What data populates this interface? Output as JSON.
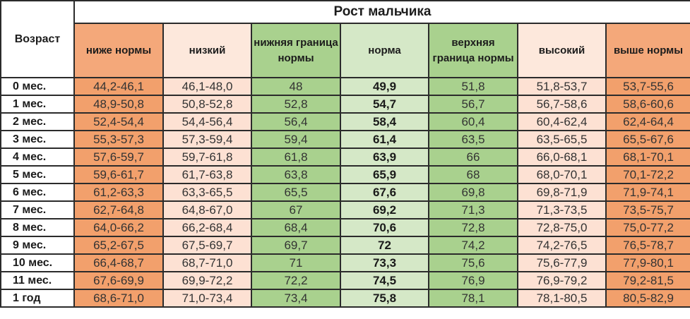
{
  "table": {
    "title": "Рост мальчика",
    "age_header": "Возраст",
    "columns": [
      "ниже нормы",
      "низкий",
      "нижняя граница нормы",
      "норма",
      "верхняя граница нормы",
      "высокий",
      "выше нормы"
    ],
    "rows": [
      {
        "age": "0 мес.",
        "values": [
          "44,2-46,1",
          "46,1-48,0",
          "48",
          "49,9",
          "51,8",
          "51,8-53,7",
          "53,7-55,6"
        ]
      },
      {
        "age": "1 мес.",
        "values": [
          "48,9-50,8",
          "50,8-52,8",
          "52,8",
          "54,7",
          "56,7",
          "56,7-58,6",
          "58,6-60,6"
        ]
      },
      {
        "age": "2 мес.",
        "values": [
          "52,4-54,4",
          "54,4-56,4",
          "56,4",
          "58,4",
          "60,4",
          "60,4-62,4",
          "62,4-64,4"
        ]
      },
      {
        "age": "3 мес.",
        "values": [
          "55,3-57,3",
          "57,3-59,4",
          "59,4",
          "61,4",
          "63,5",
          "63,5-65,5",
          "65,5-67,6"
        ]
      },
      {
        "age": "4 мес.",
        "values": [
          "57,6-59,7",
          "59,7-61,8",
          "61,8",
          "63,9",
          "66",
          "66,0-68,1",
          "68,1-70,1"
        ]
      },
      {
        "age": "5 мес.",
        "values": [
          "59,6-61,7",
          "61,7-63,8",
          "63,8",
          "65,9",
          "68",
          "68,0-70,1",
          "70,1-72,2"
        ]
      },
      {
        "age": "6 мес.",
        "values": [
          "61,2-63,3",
          "63,3-65,5",
          "65,5",
          "67,6",
          "69,8",
          "69,8-71,9",
          "71,9-74,1"
        ]
      },
      {
        "age": "7 мес.",
        "values": [
          "62,7-64,8",
          "64,8-67,0",
          "67",
          "69,2",
          "71,3",
          "71,3-73,5",
          "73,5-75,7"
        ]
      },
      {
        "age": "8 мес.",
        "values": [
          "64,0-66,2",
          "66,2-68,4",
          "68,4",
          "70,6",
          "72,8",
          "72,8-75,0",
          "75,0-77,2"
        ]
      },
      {
        "age": "9 мес.",
        "values": [
          "65,2-67,5",
          "67,5-69,7",
          "69,7",
          "72",
          "74,2",
          "74,2-76,5",
          "76,5-78,7"
        ]
      },
      {
        "age": "10 мес.",
        "values": [
          "66,4-68,7",
          "68,7-71,0",
          "71",
          "73,3",
          "75,6",
          "75,6-77,9",
          "77,9-80,1"
        ]
      },
      {
        "age": "11 мес.",
        "values": [
          "67,6-69,9",
          "69,9-72,2",
          "72,2",
          "74,5",
          "76,9",
          "76,9-79,2",
          "79,2-81,5"
        ]
      },
      {
        "age": "1 год",
        "values": [
          "68,6-71,0",
          "71,0-73,4",
          "73,4",
          "75,8",
          "78,1",
          "78,1-80,5",
          "80,5-82,9"
        ]
      }
    ]
  },
  "colors": {
    "below_above": "#f2a06c",
    "low_high": "#fde1d3",
    "boundary": "#a9d18e",
    "norm": "#d5e8c7"
  }
}
